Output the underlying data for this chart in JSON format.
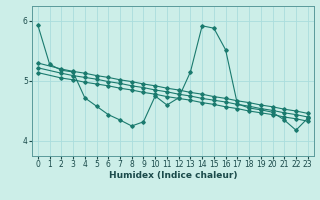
{
  "xlabel": "Humidex (Indice chaleur)",
  "background_color": "#cceee8",
  "grid_color": "#aadddd",
  "line_color": "#1a7a6e",
  "xlim": [
    -0.5,
    23.5
  ],
  "ylim": [
    3.75,
    6.25
  ],
  "yticks": [
    4,
    5,
    6
  ],
  "xticks": [
    0,
    1,
    2,
    3,
    4,
    5,
    6,
    7,
    8,
    9,
    10,
    11,
    12,
    13,
    14,
    15,
    16,
    17,
    18,
    19,
    20,
    21,
    22,
    23
  ],
  "series1_x": [
    0,
    1,
    2,
    3,
    4,
    5,
    6,
    7,
    8,
    9,
    10,
    11,
    12,
    13,
    14,
    15,
    16,
    17,
    18,
    19,
    20,
    21,
    22,
    23
  ],
  "series1_y": [
    5.93,
    5.28,
    5.18,
    5.15,
    4.72,
    4.58,
    4.44,
    4.35,
    4.25,
    4.32,
    4.75,
    4.6,
    4.72,
    5.15,
    5.92,
    5.88,
    5.52,
    4.62,
    4.55,
    4.52,
    4.48,
    4.35,
    4.18,
    4.38
  ],
  "series2_x": [
    0,
    2,
    3,
    4,
    5,
    6,
    7,
    8,
    9,
    10,
    11,
    12,
    13,
    14,
    15,
    16,
    17,
    18,
    19,
    20,
    21,
    22,
    23
  ],
  "series2_y": [
    5.3,
    5.2,
    5.16,
    5.13,
    5.09,
    5.06,
    5.02,
    4.99,
    4.95,
    4.92,
    4.88,
    4.85,
    4.81,
    4.78,
    4.74,
    4.71,
    4.67,
    4.64,
    4.6,
    4.57,
    4.53,
    4.5,
    4.46
  ],
  "series3_x": [
    0,
    2,
    3,
    4,
    5,
    6,
    7,
    8,
    9,
    10,
    11,
    12,
    13,
    14,
    15,
    16,
    17,
    18,
    19,
    20,
    21,
    22,
    23
  ],
  "series3_y": [
    5.22,
    5.13,
    5.09,
    5.06,
    5.03,
    4.99,
    4.96,
    4.92,
    4.89,
    4.85,
    4.82,
    4.78,
    4.75,
    4.71,
    4.68,
    4.65,
    4.61,
    4.58,
    4.54,
    4.51,
    4.47,
    4.44,
    4.4
  ],
  "series4_x": [
    0,
    2,
    3,
    4,
    5,
    6,
    7,
    8,
    9,
    10,
    11,
    12,
    13,
    14,
    15,
    16,
    17,
    18,
    19,
    20,
    21,
    22,
    23
  ],
  "series4_y": [
    5.14,
    5.05,
    5.02,
    4.98,
    4.95,
    4.92,
    4.88,
    4.85,
    4.81,
    4.78,
    4.74,
    4.71,
    4.68,
    4.64,
    4.61,
    4.57,
    4.54,
    4.5,
    4.47,
    4.44,
    4.4,
    4.37,
    4.33
  ]
}
